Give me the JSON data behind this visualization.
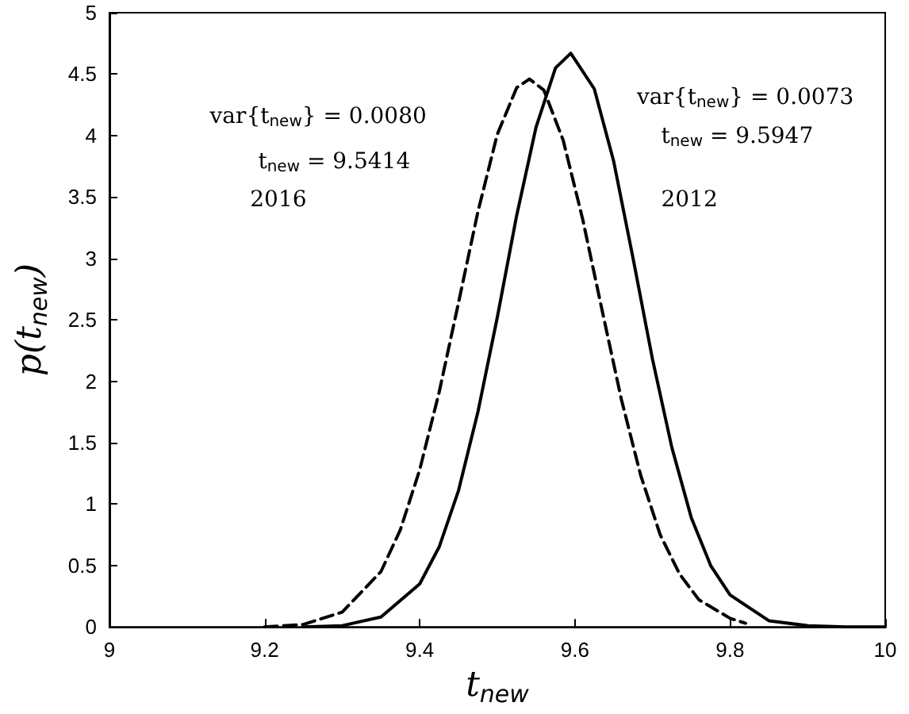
{
  "chart_data": {
    "type": "line",
    "xlabel": "t$_{new}$",
    "ylabel": "p(t$_{new}$)",
    "xlim": [
      9,
      10
    ],
    "xticks": [
      9,
      9.2,
      9.4,
      9.6,
      9.8,
      10
    ],
    "ylim": [
      0,
      5
    ],
    "yticks": [
      0,
      0.5,
      1,
      1.5,
      2,
      2.5,
      3,
      3.5,
      4,
      4.5,
      5
    ],
    "grid": false,
    "marker": "none",
    "series": [
      {
        "color": "#000000",
        "line_style": "solid",
        "x": [
          9.25,
          9.3,
          9.35,
          9.4,
          9.425,
          9.45,
          9.475,
          9.5,
          9.525,
          9.55,
          9.575,
          9.5947,
          9.625,
          9.65,
          9.675,
          9.7,
          9.725,
          9.75,
          9.775,
          9.8,
          9.85,
          9.9,
          9.95,
          10
        ],
        "values": [
          0,
          0.01,
          0.08,
          0.35,
          0.65,
          1.11,
          1.75,
          2.52,
          3.35,
          4.07,
          4.55,
          4.67,
          4.38,
          3.79,
          3,
          2.18,
          1.46,
          0.89,
          0.5,
          0.26,
          0.05,
          0.01,
          0,
          0
        ]
      },
      {
        "color": "#000000",
        "line_style": "dashed",
        "x": [
          9.2,
          9.25,
          9.3,
          9.35,
          9.375,
          9.4,
          9.425,
          9.45,
          9.475,
          9.5,
          9.525,
          9.5414,
          9.56,
          9.585,
          9.61,
          9.635,
          9.66,
          9.685,
          9.71,
          9.735,
          9.76,
          9.8,
          9.82
        ],
        "values": [
          0,
          0.02,
          0.12,
          0.45,
          0.79,
          1.28,
          1.91,
          2.64,
          3.38,
          4.01,
          4.39,
          4.46,
          4.37,
          3.96,
          3.32,
          2.58,
          1.85,
          1.23,
          0.75,
          0.43,
          0.22,
          0.07,
          0.03
        ]
      }
    ],
    "annotations": [
      "var{t$_{new}$} = 0.0080",
      "t$_{new}$ = 9.5414",
      "2016",
      "var{t$_{new}$} = 0.0073",
      "t$_{new}$ = 9.5947",
      "2012"
    ]
  }
}
